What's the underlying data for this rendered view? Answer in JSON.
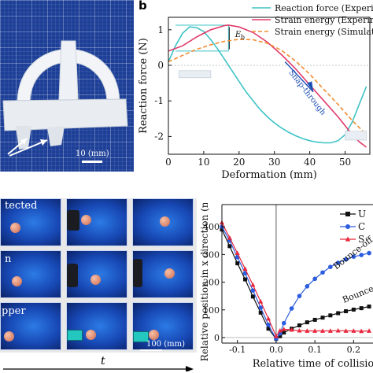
{
  "panel_a": {
    "scale_label": "10 (mm)"
  },
  "panel_b": {
    "panel_label": "b",
    "annotation_energy_barrier": "E",
    "annotation_energy_barrier_sub": "b",
    "annotation_snap": "Snap-through"
  },
  "panel_c": {
    "row_labels": [
      "tected",
      "n",
      "pper"
    ],
    "scale_label": "100 (mm)",
    "time_label": "t"
  },
  "panel_d": {
    "annotation_bounce_off": "Bounce-off",
    "annotation_bounce_2": "Bounce-"
  },
  "colors": {
    "reaction_force": "#3ec3c6",
    "strain_energy_exp": "#e03a6a",
    "strain_energy_sim": "#f28b30",
    "unprotected": "#111111",
    "series_blue": "#2b5ce0",
    "series_red": "#e8273d",
    "annotation_blue": "#1f4fb5"
  },
  "chart_data": [
    {
      "type": "line",
      "title": "",
      "xlabel": "Deformation (mm)",
      "ylabel": "Reaction force (N)",
      "xlim": [
        0,
        57
      ],
      "ylim": [
        -2.5,
        1.35
      ],
      "xticks": [
        "0",
        "10",
        "20",
        "30",
        "40",
        "50"
      ],
      "yticks": [
        "-2",
        "-1",
        "0",
        "1"
      ],
      "legend_position": "top-right",
      "series": [
        {
          "name": "Reaction force (Experi",
          "style": "solid",
          "x": [
            0,
            2,
            4,
            6,
            8,
            10,
            12,
            14,
            16,
            18,
            20,
            22,
            24,
            26,
            28,
            30,
            32,
            34,
            36,
            38,
            40,
            42,
            44,
            46,
            48,
            50,
            52,
            54,
            56
          ],
          "y": [
            0.1,
            0.55,
            0.9,
            1.08,
            1.06,
            0.95,
            0.72,
            0.45,
            0.15,
            -0.15,
            -0.45,
            -0.75,
            -1.0,
            -1.25,
            -1.45,
            -1.62,
            -1.76,
            -1.88,
            -1.98,
            -2.06,
            -2.12,
            -2.16,
            -2.18,
            -2.18,
            -2.12,
            -1.95,
            -1.6,
            -1.1,
            -0.6
          ]
        },
        {
          "name": "Strain energy (Experim",
          "style": "solid",
          "x": [
            0,
            4,
            8,
            12,
            16,
            17,
            20,
            24,
            28,
            32,
            36,
            40,
            44,
            48,
            50,
            52,
            54,
            56
          ],
          "y": [
            0.4,
            0.55,
            0.8,
            1.0,
            1.12,
            1.13,
            1.08,
            0.92,
            0.65,
            0.3,
            -0.1,
            -0.55,
            -1.0,
            -1.45,
            -1.7,
            -1.95,
            -2.15,
            -2.3
          ]
        },
        {
          "name": "Strain energy (Simulat",
          "style": "dashed",
          "x": [
            0,
            4,
            8,
            12,
            16,
            20,
            24,
            28,
            32,
            36,
            40,
            44,
            48,
            52,
            56
          ],
          "y": [
            0.1,
            0.28,
            0.45,
            0.58,
            0.68,
            0.73,
            0.72,
            0.62,
            0.42,
            0.12,
            -0.25,
            -0.68,
            -1.1,
            -1.55,
            -1.95
          ]
        }
      ]
    },
    {
      "type": "line",
      "title": "",
      "xlabel": "Relative time of collisio",
      "ylabel": "Relative position in x direction (mm)",
      "xlim": [
        -0.14,
        0.25
      ],
      "ylim": [
        -20,
        480
      ],
      "xticks": [
        "-0.1",
        "0.0",
        "0.1",
        "0.2"
      ],
      "yticks": [
        "0",
        "100",
        "200",
        "300",
        "400"
      ],
      "legend_position": "top-right",
      "series": [
        {
          "name": "U",
          "marker": "square",
          "x": [
            -0.14,
            -0.12,
            -0.1,
            -0.08,
            -0.06,
            -0.04,
            -0.02,
            0.0,
            0.01,
            0.02,
            0.04,
            0.06,
            0.08,
            0.1,
            0.12,
            0.14,
            0.16,
            0.18,
            0.2,
            0.22,
            0.24
          ],
          "y": [
            390,
            330,
            268,
            210,
            148,
            90,
            32,
            -5,
            5,
            18,
            32,
            44,
            55,
            64,
            72,
            80,
            88,
            95,
            101,
            106,
            112
          ]
        },
        {
          "name": "C",
          "marker": "circle",
          "x": [
            -0.14,
            -0.12,
            -0.1,
            -0.08,
            -0.06,
            -0.04,
            -0.02,
            0.0,
            0.01,
            0.02,
            0.04,
            0.06,
            0.08,
            0.1,
            0.12,
            0.14,
            0.16,
            0.18,
            0.2,
            0.22,
            0.24
          ],
          "y": [
            400,
            350,
            290,
            232,
            170,
            108,
            46,
            -5,
            15,
            52,
            105,
            150,
            185,
            212,
            235,
            255,
            270,
            282,
            292,
            298,
            305
          ]
        },
        {
          "name": "S",
          "marker": "triangle",
          "x": [
            -0.14,
            -0.12,
            -0.1,
            -0.08,
            -0.06,
            -0.04,
            -0.02,
            0.0,
            0.01,
            0.02,
            0.04,
            0.06,
            0.08,
            0.1,
            0.12,
            0.14,
            0.16,
            0.18,
            0.2,
            0.22,
            0.24
          ],
          "y": [
            415,
            360,
            305,
            248,
            190,
            130,
            68,
            5,
            25,
            30,
            28,
            25,
            24,
            24,
            24,
            24,
            25,
            24,
            24,
            23,
            24
          ]
        }
      ]
    }
  ]
}
